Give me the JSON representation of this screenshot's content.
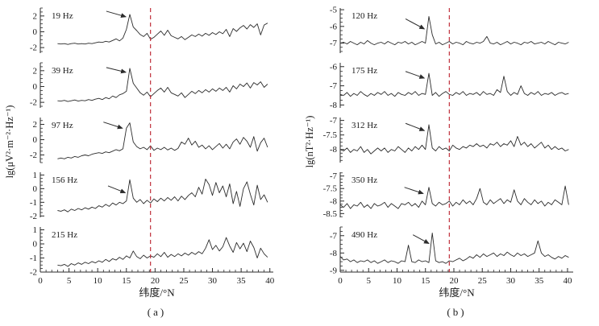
{
  "chart_data": {
    "type": "line",
    "title": "",
    "line_color": "#2b2b2b",
    "dashed_color": "#c0303c",
    "dashed_line_x": 19.2,
    "x_ticks": [
      0,
      5,
      10,
      15,
      20,
      25,
      30,
      35,
      40
    ],
    "columns": [
      {
        "id": "a",
        "caption": "(a)",
        "xlabel": "纬度/°N",
        "ylabel": "lg(μV²·m⁻²·Hz⁻¹)",
        "x_range": [
          0,
          40.6
        ],
        "panels": [
          {
            "label": "19 Hz",
            "ylim": [
              -2.7,
              3.0
            ],
            "yticks": [
              2,
              0,
              -2
            ],
            "x0": 3.0,
            "dx": 0.6,
            "arrow": {
              "from": [
                11.5,
                2.6
              ],
              "to": [
                14.9,
                1.9
              ]
            },
            "y": [
              -1.5,
              -1.55,
              -1.5,
              -1.6,
              -1.5,
              -1.45,
              -1.55,
              -1.5,
              -1.55,
              -1.45,
              -1.5,
              -1.4,
              -1.3,
              -1.35,
              -1.2,
              -1.3,
              -1.1,
              -0.9,
              -1.15,
              -0.8,
              0.3,
              2.2,
              0.6,
              0.15,
              -0.35,
              -0.6,
              -0.2,
              -0.95,
              -0.7,
              -0.3,
              0.1,
              -0.45,
              0.2,
              -0.5,
              -0.7,
              -0.9,
              -0.6,
              -1.0,
              -0.7,
              -0.4,
              -0.6,
              -0.3,
              -0.55,
              -0.2,
              -0.45,
              -0.1,
              -0.35,
              0.0,
              -0.25,
              0.3,
              -0.6,
              0.4,
              0.05,
              0.5,
              0.8,
              0.35,
              0.9,
              0.55,
              1.0,
              -0.4,
              0.85,
              1.1
            ]
          },
          {
            "label": "39 Hz",
            "ylim": [
              -2.7,
              3.0
            ],
            "yticks": [
              2,
              0,
              -2
            ],
            "x0": 3.0,
            "dx": 0.6,
            "arrow": {
              "from": [
                11.5,
                2.4
              ],
              "to": [
                14.9,
                1.8
              ]
            },
            "y": [
              -1.8,
              -1.85,
              -1.75,
              -1.9,
              -1.8,
              -1.7,
              -1.85,
              -1.75,
              -1.8,
              -1.65,
              -1.75,
              -1.6,
              -1.5,
              -1.65,
              -1.4,
              -1.55,
              -1.2,
              -1.4,
              -1.05,
              -0.9,
              -0.6,
              2.3,
              0.4,
              -0.2,
              -0.8,
              -1.1,
              -0.7,
              -1.3,
              -0.9,
              -0.5,
              -0.2,
              -0.7,
              -0.1,
              -0.8,
              -1.0,
              -1.2,
              -0.8,
              -1.4,
              -1.0,
              -0.6,
              -0.9,
              -0.5,
              -0.8,
              -0.4,
              -0.7,
              -0.3,
              -0.6,
              -0.2,
              -0.5,
              -0.1,
              -0.7,
              0.1,
              -0.3,
              0.3,
              0.0,
              0.45,
              -0.2,
              0.5,
              0.2,
              0.6,
              -0.1,
              0.3
            ]
          },
          {
            "label": "97 Hz",
            "ylim": [
              -3.0,
              2.9
            ],
            "yticks": [
              2,
              0,
              -2
            ],
            "x0": 3.0,
            "dx": 0.6,
            "arrow": {
              "from": [
                11.0,
                2.3
              ],
              "to": [
                14.3,
                1.5
              ]
            },
            "y": [
              -2.5,
              -2.4,
              -2.5,
              -2.3,
              -2.4,
              -2.2,
              -2.3,
              -2.1,
              -2.0,
              -2.1,
              -1.9,
              -1.8,
              -1.7,
              -1.8,
              -1.6,
              -1.7,
              -1.5,
              -1.3,
              -1.45,
              -1.2,
              1.5,
              2.2,
              -0.3,
              -0.9,
              -1.2,
              -1.0,
              -1.3,
              -0.8,
              -1.4,
              -1.1,
              -1.3,
              -1.0,
              -1.35,
              -1.1,
              -1.4,
              -1.15,
              -0.3,
              -0.6,
              0.2,
              -0.7,
              -0.2,
              -1.0,
              -0.7,
              -1.2,
              -0.8,
              -1.3,
              -0.9,
              -0.5,
              -1.1,
              -0.6,
              -1.2,
              -0.3,
              0.1,
              -0.6,
              0.3,
              -0.2,
              -1.0,
              0.4,
              -1.5,
              -0.4,
              0.2,
              -1.0
            ]
          },
          {
            "label": "156 Hz",
            "ylim": [
              -2.1,
              1.2
            ],
            "yticks": [
              1,
              0,
              -1,
              -2
            ],
            "x0": 3.0,
            "dx": 0.6,
            "arrow": {
              "from": [
                11.8,
                0.2
              ],
              "to": [
                14.8,
                -0.3
              ]
            },
            "y": [
              -1.6,
              -1.65,
              -1.55,
              -1.7,
              -1.5,
              -1.6,
              -1.45,
              -1.55,
              -1.4,
              -1.5,
              -1.35,
              -1.45,
              -1.25,
              -1.35,
              -1.15,
              -1.3,
              -1.05,
              -1.2,
              -1.0,
              -1.1,
              -0.9,
              0.65,
              -0.7,
              -1.0,
              -0.8,
              -1.1,
              -0.85,
              -1.05,
              -0.75,
              -0.95,
              -0.7,
              -0.9,
              -0.65,
              -0.85,
              -0.6,
              -0.9,
              -0.55,
              -0.8,
              -0.5,
              -0.3,
              -0.6,
              0.1,
              -0.4,
              0.7,
              0.3,
              -0.5,
              0.45,
              -0.3,
              0.2,
              -0.6,
              0.35,
              -1.1,
              -0.2,
              -1.3,
              0.0,
              0.5,
              -0.4,
              -1.2,
              0.25,
              -0.8,
              -0.45,
              -1.0
            ]
          },
          {
            "label": "215 Hz",
            "ylim": [
              -2.0,
              1.2
            ],
            "yticks": [
              1,
              0,
              -1,
              -2
            ],
            "x0": 3.0,
            "dx": 0.6,
            "y": [
              -1.5,
              -1.55,
              -1.45,
              -1.6,
              -1.4,
              -1.5,
              -1.35,
              -1.45,
              -1.3,
              -1.4,
              -1.25,
              -1.35,
              -1.2,
              -1.3,
              -1.1,
              -1.25,
              -1.05,
              -1.15,
              -0.95,
              -1.1,
              -0.85,
              -1.0,
              -0.5,
              -0.9,
              -1.05,
              -0.8,
              -1.0,
              -0.85,
              -0.95,
              -0.7,
              -0.9,
              -0.6,
              -0.95,
              -0.75,
              -0.9,
              -0.7,
              -0.85,
              -0.65,
              -0.8,
              -0.6,
              -0.75,
              -0.55,
              -0.7,
              -0.3,
              0.3,
              -0.4,
              -0.1,
              -0.5,
              -0.2,
              0.45,
              -0.15,
              -0.6,
              0.1,
              -0.35,
              0.05,
              -0.55,
              0.2,
              -0.25,
              -1.0,
              -0.3,
              -0.7,
              -0.95
            ]
          }
        ]
      },
      {
        "id": "b",
        "caption": "(b)",
        "xlabel": "纬度/°N",
        "ylabel": "lg(nT²·Hz⁻¹)",
        "x_range": [
          0,
          41
        ],
        "panels": [
          {
            "label": "120 Hz",
            "ylim": [
              -7.6,
              -4.9
            ],
            "yticks": [
              -5,
              -6,
              -7
            ],
            "x0": 0.0,
            "dx": 0.6,
            "arrow": {
              "from": [
                11.5,
                -5.55
              ],
              "to": [
                14.8,
                -6.15
              ]
            },
            "y": [
              -7.0,
              -6.95,
              -7.05,
              -6.9,
              -7.0,
              -7.1,
              -6.95,
              -7.05,
              -6.85,
              -7.0,
              -7.1,
              -7.0,
              -6.95,
              -7.05,
              -6.9,
              -7.0,
              -7.1,
              -6.95,
              -7.0,
              -6.9,
              -7.05,
              -6.95,
              -7.1,
              -7.0,
              -6.9,
              -7.0,
              -5.4,
              -6.5,
              -7.05,
              -6.95,
              -7.1,
              -7.0,
              -6.9,
              -7.05,
              -6.95,
              -7.0,
              -7.1,
              -6.9,
              -7.0,
              -7.05,
              -6.95,
              -7.0,
              -6.9,
              -6.6,
              -7.0,
              -7.05,
              -6.95,
              -7.1,
              -7.0,
              -6.9,
              -7.05,
              -6.95,
              -7.0,
              -7.1,
              -6.95,
              -7.0,
              -6.9,
              -7.05,
              -7.0,
              -6.95,
              -7.05,
              -6.9,
              -7.0,
              -7.1,
              -6.95,
              -7.0,
              -7.05,
              -6.95
            ]
          },
          {
            "label": "175 Hz",
            "ylim": [
              -8.15,
              -5.8
            ],
            "yticks": [
              -6,
              -7,
              -8
            ],
            "x0": 0.0,
            "dx": 0.6,
            "arrow": {
              "from": [
                11.5,
                -6.25
              ],
              "to": [
                14.8,
                -6.6
              ]
            },
            "y": [
              -7.45,
              -7.5,
              -7.35,
              -7.55,
              -7.4,
              -7.5,
              -7.3,
              -7.45,
              -7.55,
              -7.4,
              -7.5,
              -7.35,
              -7.45,
              -7.3,
              -7.5,
              -7.4,
              -7.55,
              -7.35,
              -7.45,
              -7.5,
              -7.35,
              -7.45,
              -7.3,
              -7.5,
              -7.4,
              -7.45,
              -6.35,
              -7.5,
              -7.35,
              -7.55,
              -7.4,
              -7.3,
              -7.45,
              -7.5,
              -7.35,
              -7.45,
              -7.3,
              -7.5,
              -7.4,
              -7.45,
              -7.35,
              -7.5,
              -7.3,
              -7.45,
              -7.4,
              -7.5,
              -7.2,
              -7.35,
              -6.5,
              -7.3,
              -7.5,
              -7.35,
              -7.45,
              -7.0,
              -7.4,
              -7.5,
              -7.35,
              -7.45,
              -7.3,
              -7.5,
              -7.4,
              -7.45,
              -7.35,
              -7.5,
              -7.4,
              -7.35,
              -7.45,
              -7.4
            ]
          },
          {
            "label": "312 Hz",
            "ylim": [
              -8.45,
              -6.9
            ],
            "yticks": [
              -7,
              -7.5,
              -8
            ],
            "x0": 0.0,
            "dx": 0.6,
            "arrow": {
              "from": [
                11.5,
                -7.1
              ],
              "to": [
                14.8,
                -7.35
              ]
            },
            "y": [
              -8.0,
              -8.05,
              -7.95,
              -8.1,
              -8.0,
              -8.05,
              -7.9,
              -8.1,
              -8.0,
              -8.15,
              -8.05,
              -7.95,
              -8.05,
              -7.95,
              -8.1,
              -8.0,
              -8.05,
              -7.9,
              -8.0,
              -8.1,
              -7.95,
              -8.05,
              -7.9,
              -8.0,
              -7.85,
              -8.0,
              -7.15,
              -7.95,
              -8.05,
              -7.9,
              -8.0,
              -7.95,
              -8.05,
              -7.85,
              -7.95,
              -8.0,
              -7.9,
              -7.95,
              -7.85,
              -7.9,
              -7.8,
              -7.9,
              -7.85,
              -7.95,
              -7.8,
              -7.85,
              -7.75,
              -7.9,
              -7.8,
              -7.85,
              -7.7,
              -7.9,
              -7.55,
              -7.85,
              -7.75,
              -7.9,
              -7.8,
              -7.95,
              -7.85,
              -7.75,
              -7.95,
              -7.85,
              -8.0,
              -7.9,
              -8.0,
              -7.95,
              -8.05,
              -8.0
            ]
          },
          {
            "label": "350 Hz",
            "ylim": [
              -8.65,
              -6.85
            ],
            "yticks": [
              -7,
              -7.5,
              -8,
              -8.5
            ],
            "x0": 0.0,
            "dx": 0.6,
            "arrow": {
              "from": [
                11.3,
                -7.45
              ],
              "to": [
                14.6,
                -7.7
              ]
            },
            "y": [
              -8.15,
              -8.25,
              -8.1,
              -8.3,
              -8.15,
              -8.2,
              -8.05,
              -8.25,
              -8.15,
              -8.3,
              -8.1,
              -8.2,
              -8.15,
              -8.05,
              -8.25,
              -8.1,
              -8.2,
              -8.3,
              -8.1,
              -8.15,
              -8.05,
              -8.2,
              -8.1,
              -8.25,
              -8.0,
              -8.15,
              -7.45,
              -8.1,
              -8.2,
              -8.05,
              -8.15,
              -8.1,
              -8.0,
              -8.2,
              -8.05,
              -8.15,
              -7.95,
              -8.1,
              -8.0,
              -8.15,
              -7.9,
              -7.5,
              -8.05,
              -8.15,
              -7.95,
              -8.1,
              -8.0,
              -7.9,
              -8.1,
              -7.95,
              -8.05,
              -7.55,
              -8.0,
              -8.15,
              -7.9,
              -8.05,
              -8.15,
              -7.95,
              -8.1,
              -8.0,
              -8.2,
              -8.05,
              -8.15,
              -7.95,
              -8.05,
              -8.15,
              -7.4,
              -8.15
            ]
          },
          {
            "label": "490 Hz",
            "ylim": [
              -9.1,
              -6.5
            ],
            "yticks": [
              -7,
              -8,
              -9
            ],
            "x0": 0.0,
            "dx": 0.6,
            "arrow": {
              "from": [
                12.8,
                -6.95
              ],
              "to": [
                15.6,
                -7.45
              ]
            },
            "y": [
              -8.2,
              -8.4,
              -8.35,
              -8.5,
              -8.4,
              -8.55,
              -8.45,
              -8.5,
              -8.4,
              -8.55,
              -8.45,
              -8.6,
              -8.5,
              -8.4,
              -8.55,
              -8.45,
              -8.5,
              -8.6,
              -8.45,
              -8.5,
              -7.55,
              -8.5,
              -8.55,
              -8.4,
              -8.5,
              -8.45,
              -8.55,
              -6.85,
              -8.45,
              -8.55,
              -8.5,
              -8.6,
              -8.45,
              -8.5,
              -8.4,
              -8.3,
              -8.45,
              -8.35,
              -8.2,
              -8.3,
              -8.1,
              -8.25,
              -8.05,
              -8.2,
              -8.1,
              -8.0,
              -8.2,
              -8.05,
              -8.15,
              -7.95,
              -8.1,
              -8.2,
              -8.0,
              -8.15,
              -8.05,
              -8.2,
              -8.1,
              -8.0,
              -7.3,
              -8.0,
              -8.2,
              -8.1,
              -8.25,
              -8.35,
              -8.2,
              -8.3,
              -8.15,
              -8.25
            ]
          }
        ]
      }
    ]
  }
}
